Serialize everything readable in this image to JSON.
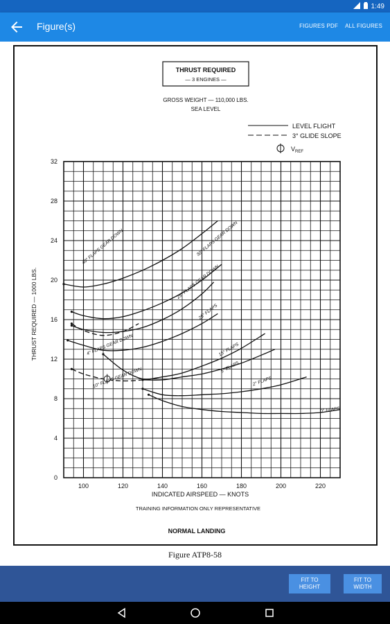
{
  "status": {
    "time": "1:49"
  },
  "appbar": {
    "title": "Figure(s)",
    "figures_pdf": "FIGURES PDF",
    "all_figures": "ALL FIGURES"
  },
  "figure": {
    "box_title_line1": "THRUST REQUIRED",
    "box_title_line2": "— 3 ENGINES —",
    "gross_weight": "GROSS WEIGHT — 110,000 LBS.",
    "sea_level": "SEA LEVEL",
    "legend_level": "LEVEL FLIGHT",
    "legend_glide": "3° GLIDE SLOPE",
    "legend_vref": "V",
    "legend_vref_sub": "REF",
    "ylabel": "THRUST REQUIRED — 1000 LBS.",
    "xlabel": "INDICATED AIRSPEED — KNOTS",
    "note": "TRAINING INFORMATION ONLY   REPRESENTATIVE",
    "footer": "NORMAL LANDING",
    "curve_labels": {
      "flaps40": "40° FLAPS GEAR DOWN",
      "flaps30": "30° FLAPS GEAR DOWN",
      "flaps25gd": "25° FLAPS GEAR DOWN",
      "flaps25": "25° FLAPS",
      "flaps15": "15° FLAPS",
      "flaps5": "5° FLAPS",
      "flaps2": "2° FLAPS",
      "flaps0": "0° FLAPS",
      "flaps4gd": "4° FLAPS GEAR DOWN",
      "flaps10gd": "10° FLAPS GEAR DOWN"
    }
  },
  "caption": "Figure ATP8-58",
  "buttons": {
    "fit_height": "FIT TO HEIGHT",
    "fit_width": "FIT TO WIDTH"
  },
  "chart_data": {
    "type": "line",
    "xlabel": "INDICATED AIRSPEED — KNOTS",
    "ylabel": "THRUST REQUIRED — 1000 LBS.",
    "xlim": [
      90,
      230
    ],
    "ylim": [
      0,
      32
    ],
    "x_ticks": [
      100,
      120,
      140,
      160,
      180,
      200,
      220
    ],
    "y_ticks": [
      0,
      4,
      8,
      12,
      16,
      20,
      24,
      28,
      32
    ],
    "grid": true,
    "series": [
      {
        "name": "40° FLAPS GEAR DOWN",
        "style": "solid",
        "x": [
          90,
          100,
          110,
          120,
          130,
          140,
          150,
          160,
          168
        ],
        "y": [
          19.6,
          19.3,
          19.6,
          20.2,
          21.0,
          22.0,
          23.2,
          24.7,
          26.0
        ]
      },
      {
        "name": "30° FLAPS GEAR DOWN",
        "style": "solid",
        "x": [
          94,
          100,
          110,
          120,
          130,
          140,
          150,
          160,
          170
        ],
        "y": [
          16.8,
          16.4,
          16.1,
          16.3,
          16.9,
          17.7,
          18.7,
          20.0,
          21.6
        ]
      },
      {
        "name": "25° FLAPS GEAR DOWN",
        "style": "solid",
        "x": [
          94,
          100,
          110,
          120,
          130,
          140,
          150,
          160,
          166
        ],
        "y": [
          15.4,
          15.0,
          14.7,
          14.8,
          15.2,
          16.0,
          17.1,
          18.6,
          19.8
        ]
      },
      {
        "name": "25° FLAPS",
        "style": "solid",
        "x": [
          92,
          100,
          110,
          120,
          130,
          140,
          150,
          160,
          168
        ],
        "y": [
          13.9,
          13.4,
          12.9,
          12.9,
          13.2,
          13.8,
          14.6,
          15.6,
          16.6
        ]
      },
      {
        "name": "15° FLAPS",
        "style": "solid",
        "x": [
          110,
          120,
          130,
          140,
          150,
          160,
          170,
          180,
          192
        ],
        "y": [
          12.5,
          10.9,
          10.0,
          10.2,
          10.6,
          11.3,
          12.1,
          13.1,
          14.6
        ]
      },
      {
        "name": "5° FLAPS",
        "style": "solid",
        "x": [
          130,
          140,
          150,
          160,
          170,
          180,
          190,
          197
        ],
        "y": [
          9.9,
          9.9,
          10.2,
          10.5,
          11.0,
          11.6,
          12.4,
          13.0
        ]
      },
      {
        "name": "2° FLAPS",
        "style": "solid",
        "x": [
          130,
          140,
          150,
          160,
          170,
          180,
          190,
          200,
          213
        ],
        "y": [
          9.0,
          8.4,
          8.3,
          8.4,
          8.5,
          8.7,
          9.0,
          9.4,
          10.2
        ]
      },
      {
        "name": "0° FLAPS",
        "style": "solid",
        "x": [
          133,
          140,
          150,
          160,
          170,
          180,
          190,
          200,
          210,
          220,
          230
        ],
        "y": [
          8.4,
          7.8,
          7.2,
          6.9,
          6.7,
          6.6,
          6.5,
          6.5,
          6.5,
          6.6,
          6.9
        ]
      },
      {
        "name": "40° FLAPS GEAR DOWN (3° glide slope)",
        "style": "dashed",
        "x": [
          94,
          100,
          110,
          120,
          128
        ],
        "y": [
          15.6,
          14.9,
          14.4,
          14.8,
          15.6
        ]
      },
      {
        "name": "10° FLAPS GEAR DOWN (3° glide slope)",
        "style": "dashed",
        "x": [
          94,
          100,
          110,
          120,
          130,
          140
        ],
        "y": [
          11.0,
          10.5,
          10.0,
          9.8,
          9.9,
          10.2
        ]
      }
    ],
    "vref_markers": [
      {
        "x": 112,
        "y": 10.0
      }
    ]
  }
}
